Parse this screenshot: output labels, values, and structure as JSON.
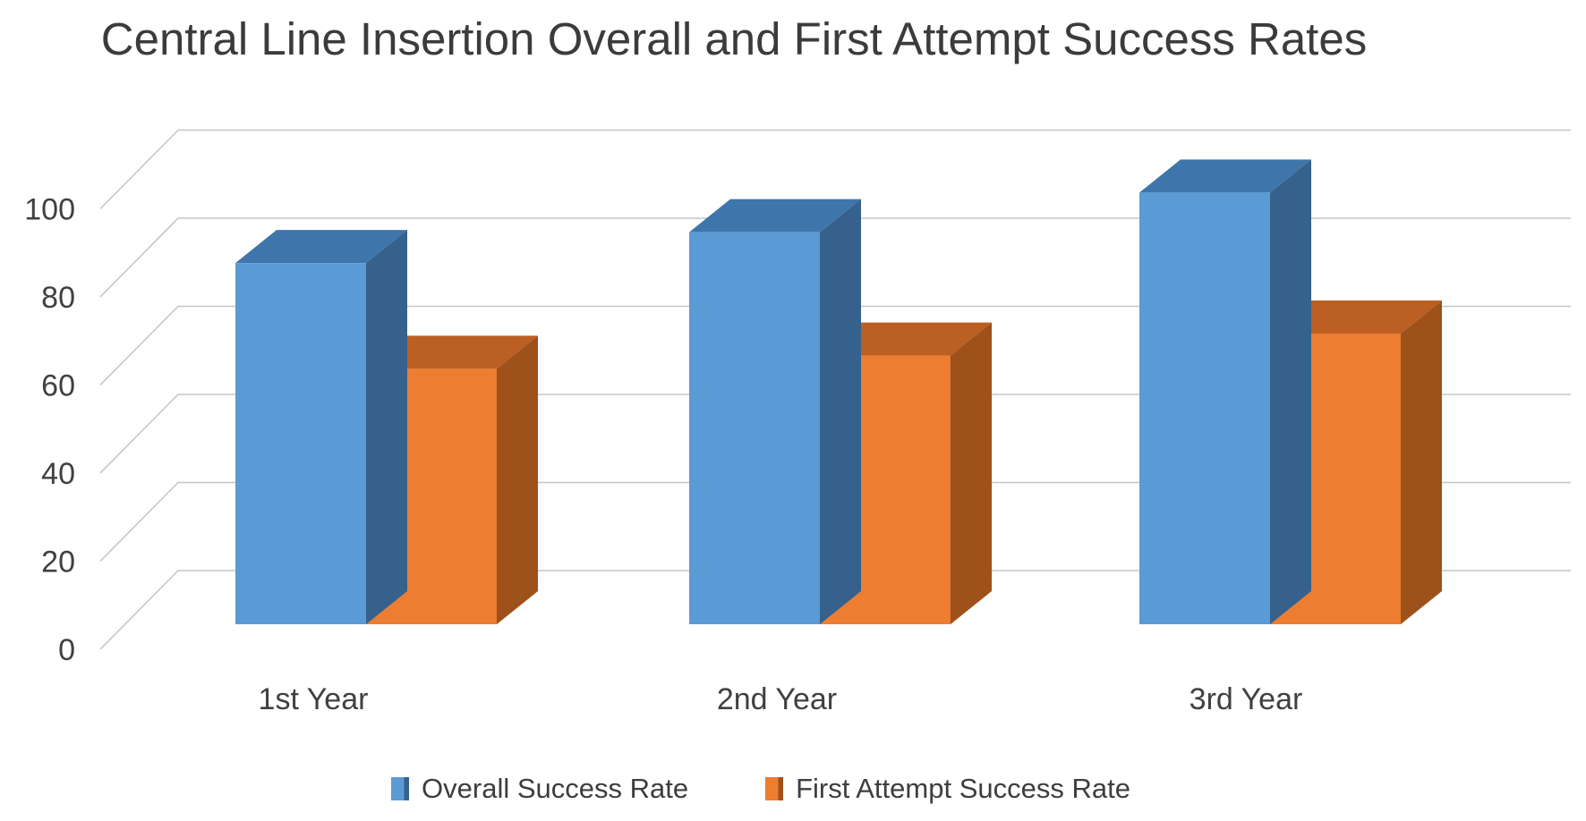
{
  "title": "Central Line Insertion Overall and First Attempt Success Rates",
  "chart_data": {
    "type": "bar",
    "subtype": "3d-clustered-column",
    "title": "Central Line Insertion Overall and First Attempt Success Rates",
    "categories": [
      "1st Year",
      "2nd Year",
      "3rd Year"
    ],
    "series": [
      {
        "name": "Overall Success Rate",
        "values": [
          82,
          89,
          98
        ],
        "color_front": "#5B9BD5",
        "color_top": "#3E76AB",
        "color_side": "#35618C"
      },
      {
        "name": "First Attempt Success Rate",
        "values": [
          58,
          61,
          66
        ],
        "color_front": "#ED7D31",
        "color_top": "#BC5F22",
        "color_side": "#9E511B"
      }
    ],
    "xlabel": "",
    "ylabel": "",
    "ylim": [
      0,
      100
    ],
    "yticks": [
      0,
      20,
      40,
      60,
      80,
      100
    ],
    "grid": true,
    "legend_position": "bottom"
  },
  "colors": {
    "grid": "#C6C6C6",
    "axis_text": "#404040",
    "title_text": "#3B3B3B",
    "background": "#FFFFFF"
  }
}
